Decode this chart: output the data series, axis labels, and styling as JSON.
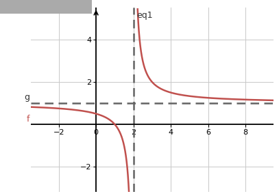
{
  "func_label": "f",
  "asymptote_label": "g",
  "vertical_asymptote_label": "eq1",
  "vertical_asymptote_x": 2,
  "horizontal_asymptote_y": 1,
  "xlim": [
    -3.5,
    9.5
  ],
  "ylim": [
    -3.2,
    5.5
  ],
  "xticks": [
    -2,
    0,
    2,
    4,
    6,
    8
  ],
  "yticks": [
    -2,
    2,
    4
  ],
  "curve_color": "#c0504d",
  "asymptote_color": "#636363",
  "axis_color": "#000000",
  "grid_color": "#c8c8c8",
  "background_color": "#ffffff",
  "figsize": [
    4.07,
    2.87
  ],
  "dpi": 100
}
